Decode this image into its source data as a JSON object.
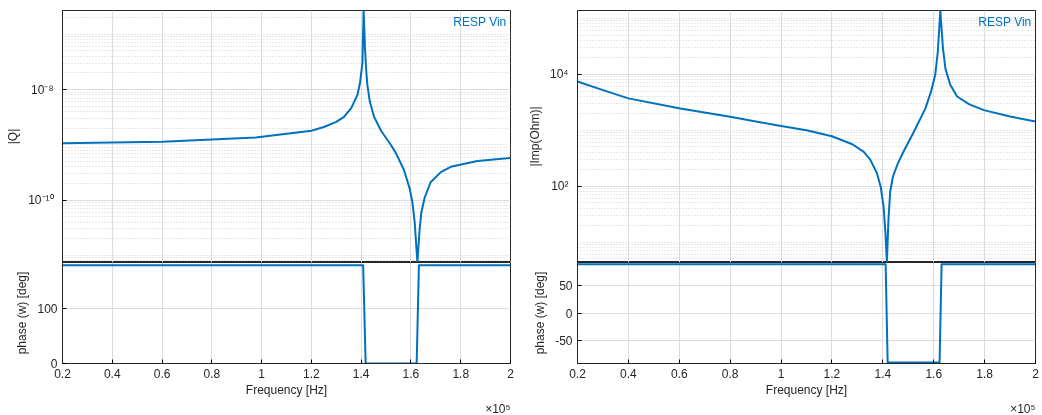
{
  "chart_data": [
    {
      "type": "line",
      "ylabel": "|Q|",
      "log": "y",
      "grid": true,
      "legend": "top right",
      "tick_labels": "y",
      "xlim": [
        0.2,
        2
      ],
      "xticks": [
        0.2,
        0.4,
        0.6,
        0.8,
        1,
        1.2,
        1.4,
        1.6,
        1.8,
        2
      ],
      "ylim": [
        7.4e-12,
        2.7e-07
      ],
      "yticks": [
        {
          "value": 1e-10,
          "label": "10⁻¹⁰"
        },
        {
          "value": 1e-08,
          "label": "10⁻⁸"
        }
      ],
      "x": [
        0.2,
        0.602,
        0.976,
        1.2,
        1.25,
        1.3,
        1.331,
        1.36,
        1.385,
        1.395,
        1.405,
        1.41,
        1.415,
        1.42,
        1.425,
        1.435,
        1.452,
        1.48,
        1.519,
        1.54,
        1.572,
        1.595,
        1.606,
        1.615,
        1.626,
        1.635,
        1.642,
        1.655,
        1.679,
        1.72,
        1.76,
        1.867,
        2
      ],
      "series": [
        {
          "name": "RESP Vin",
          "color": "#0072bd",
          "values": [
            1.07e-09,
            1.14e-09,
            1.35e-09,
            1.8e-09,
            2.1e-09,
            2.6e-09,
            3.2e-09,
            4.6e-09,
            8e-09,
            1.3e-08,
            3e-08,
            2.7e-07,
            6e-08,
            2.3e-08,
            1.2e-08,
            6e-09,
            3.2e-09,
            1.8e-09,
            1e-09,
            7e-10,
            3.5e-10,
            1.6e-10,
            9e-11,
            4e-11,
            7.4e-12,
            3e-11,
            6e-11,
            1.1e-10,
            2.1e-10,
            3.2e-10,
            4e-10,
            5.1e-10,
            5.8e-10
          ]
        }
      ]
    },
    {
      "type": "line",
      "ylabel": "|Imp(Ohm)|",
      "log": "y",
      "grid": true,
      "legend": "top right",
      "tick_labels": "y",
      "xlim": [
        0.2,
        2
      ],
      "xticks": [
        0.2,
        0.4,
        0.6,
        0.8,
        1,
        1.2,
        1.4,
        1.6,
        1.8,
        2
      ],
      "ylim": [
        4.3,
        138000
      ],
      "yticks": [
        {
          "value": 100,
          "label": "10²"
        },
        {
          "value": 10000,
          "label": "10⁴"
        }
      ],
      "x": [
        0.2,
        0.3,
        0.4,
        0.604,
        0.8,
        0.977,
        1.1,
        1.2,
        1.28,
        1.324,
        1.35,
        1.377,
        1.392,
        1.403,
        1.41,
        1.416,
        1.422,
        1.429,
        1.44,
        1.46,
        1.481,
        1.52,
        1.567,
        1.59,
        1.606,
        1.616,
        1.626,
        1.636,
        1.646,
        1.665,
        1.692,
        1.74,
        1.797,
        1.9,
        2
      ],
      "series": [
        {
          "name": "RESP Vin",
          "color": "#0072bd",
          "values": [
            7400,
            5200,
            3700,
            2430,
            1730,
            1240,
            1000,
            780,
            560,
            412,
            300,
            170,
            95,
            42,
            15,
            4.3,
            25,
            80,
            150,
            260,
            412,
            900,
            2430,
            5000,
            9800,
            25000,
            138000,
            30000,
            12600,
            6500,
            4000,
            2900,
            2280,
            1750,
            1430
          ]
        }
      ]
    },
    {
      "type": "line",
      "xlabel": "Frequency [Hz]",
      "ylabel": "phase (w) [deg]",
      "grid": true,
      "xlim": [
        0.2,
        2
      ],
      "xticks": [
        0.2,
        0.4,
        0.6,
        0.8,
        1,
        1.2,
        1.4,
        1.6,
        1.8,
        2
      ],
      "ylim": [
        0,
        185
      ],
      "yticks": [
        0,
        100
      ],
      "annotations": [
        "×10⁵"
      ],
      "x": [
        0.2,
        1.408,
        1.418,
        1.623,
        1.632,
        2
      ],
      "series": [
        {
          "color": "#0072bd",
          "values": [
            180,
            180,
            0,
            0,
            180,
            180
          ]
        }
      ]
    },
    {
      "type": "line",
      "xlabel": "Frequency [Hz]",
      "ylabel": "phase (w) [deg]",
      "grid": true,
      "xlim": [
        0.2,
        2
      ],
      "xticks": [
        0.2,
        0.4,
        0.6,
        0.8,
        1,
        1.2,
        1.4,
        1.6,
        1.8,
        2
      ],
      "ylim": [
        -92,
        93
      ],
      "yticks": [
        -50,
        0,
        50
      ],
      "annotations": [
        "×10⁵"
      ],
      "x": [
        0.2,
        1.411,
        1.419,
        1.623,
        1.631,
        2
      ],
      "series": [
        {
          "color": "#0072bd",
          "values": [
            90,
            90,
            -90,
            -90,
            90,
            90
          ]
        }
      ]
    }
  ]
}
